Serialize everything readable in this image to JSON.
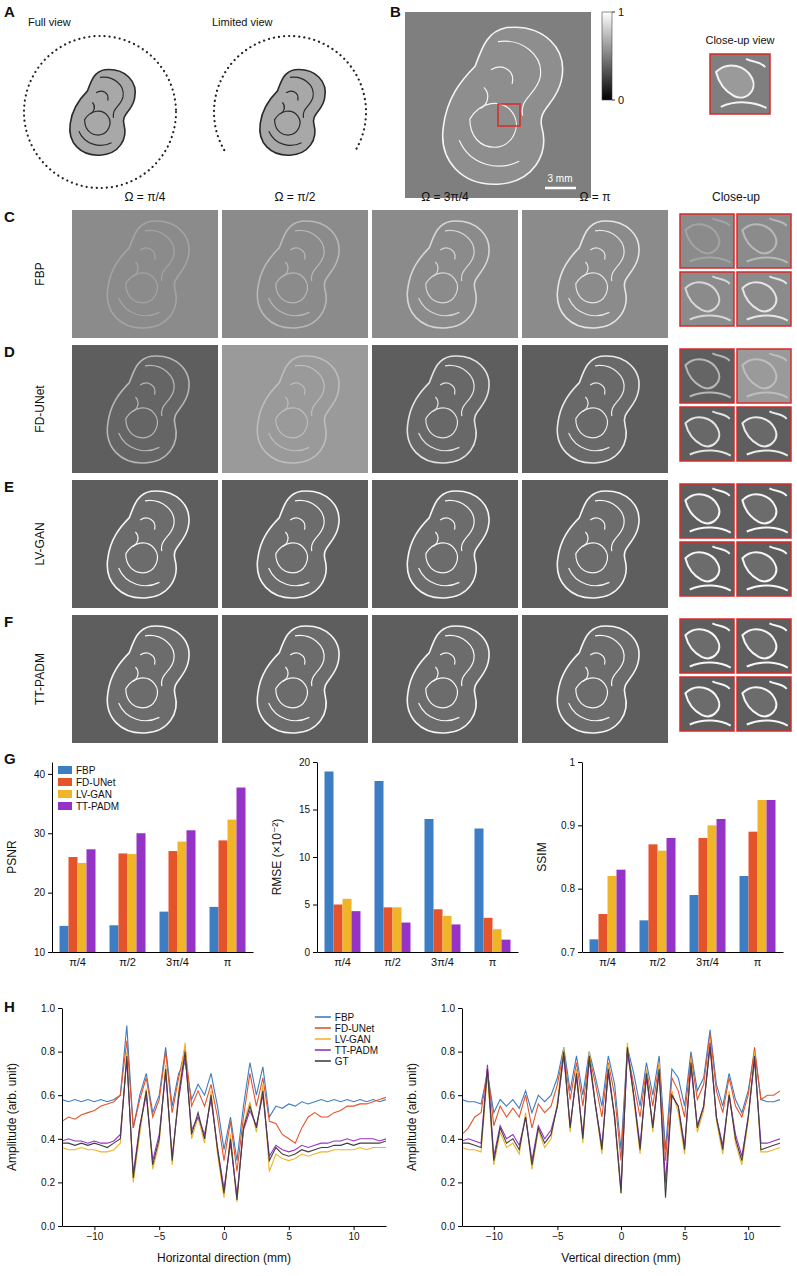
{
  "figure": {
    "panel_letters": [
      "A",
      "B",
      "C",
      "D",
      "E",
      "F",
      "G",
      "H"
    ],
    "panel_a": {
      "full_view": "Full view",
      "limited_view": "Limited view"
    },
    "panel_b": {
      "colorbar": {
        "range": [
          0,
          1
        ],
        "ticks": [
          0,
          1
        ]
      },
      "close_up_title": "Close-up view",
      "scale_bar": "3 mm"
    },
    "columns": [
      "Ω = π/4",
      "Ω = π/2",
      "Ω = 3π/4",
      "Ω = π"
    ],
    "close_up_head": "Close-up",
    "rows": [
      "FBP",
      "FD-UNet",
      "LV-GAN",
      "TT-PADM"
    ]
  },
  "chart_data": [
    {
      "type": "bar",
      "ylabel": "PSNR",
      "categories": [
        "π/4",
        "π/2",
        "3π/4",
        "π"
      ],
      "ylim": [
        10,
        42
      ],
      "yticks": [
        10,
        20,
        30,
        40
      ],
      "legend": "upper left",
      "series": [
        {
          "name": "FBP",
          "color": "#3c7dc4",
          "values": [
            14.4,
            14.5,
            16.8,
            17.6
          ]
        },
        {
          "name": "FD-UNet",
          "color": "#e5532b",
          "values": [
            26,
            26.6,
            27,
            28.8
          ]
        },
        {
          "name": "LV-GAN",
          "color": "#f0b429",
          "values": [
            25,
            26.5,
            28.6,
            32.3
          ]
        },
        {
          "name": "TT-PADM",
          "color": "#9532c8",
          "values": [
            27.3,
            30,
            30.5,
            37.7
          ]
        }
      ]
    },
    {
      "type": "bar",
      "ylabel": "RMSE (×10⁻²)",
      "categories": [
        "π/4",
        "π/2",
        "3π/4",
        "π"
      ],
      "ylim": [
        0,
        20
      ],
      "yticks": [
        0,
        5,
        10,
        15,
        20
      ],
      "series": [
        {
          "color": "#3c7dc4",
          "values": [
            19,
            18,
            14,
            13
          ]
        },
        {
          "color": "#e5532b",
          "values": [
            5,
            4.7,
            4.5,
            3.6
          ]
        },
        {
          "color": "#f0b429",
          "values": [
            5.6,
            4.7,
            3.8,
            2.4
          ]
        },
        {
          "color": "#9532c8",
          "values": [
            4.3,
            3.1,
            2.9,
            1.3
          ]
        }
      ]
    },
    {
      "type": "bar",
      "ylabel": "SSIM",
      "categories": [
        "π/4",
        "π/2",
        "3π/4",
        "π"
      ],
      "ylim": [
        0.7,
        1
      ],
      "yticks": [
        0.7,
        0.8,
        0.9,
        1
      ],
      "series": [
        {
          "color": "#3c7dc4",
          "values": [
            0.72,
            0.75,
            0.79,
            0.82
          ]
        },
        {
          "color": "#e5532b",
          "values": [
            0.76,
            0.87,
            0.88,
            0.89
          ]
        },
        {
          "color": "#f0b429",
          "values": [
            0.82,
            0.86,
            0.9,
            0.94
          ]
        },
        {
          "color": "#9532c8",
          "values": [
            0.83,
            0.88,
            0.91,
            0.94
          ]
        }
      ]
    },
    {
      "type": "line",
      "xlabel": "Horizontal direction (mm)",
      "ylabel": "Amplitude (arb. unit)",
      "x": [
        -12.5,
        -12,
        -11.5,
        -11,
        -10.5,
        -10,
        -9.5,
        -9,
        -8.5,
        -8,
        -7.5,
        -7,
        -6.5,
        -6,
        -5.5,
        -5,
        -4.5,
        -4,
        -3.5,
        -3,
        -2.5,
        -2,
        -1.5,
        -1,
        -0.5,
        0,
        0.5,
        1,
        1.5,
        2,
        2.5,
        3,
        3.5,
        4,
        4.5,
        5,
        5.5,
        6,
        6.5,
        7,
        7.5,
        8,
        8.5,
        9,
        9.5,
        10,
        10.5,
        11,
        11.5,
        12,
        12.5
      ],
      "xlim": [
        -12.5,
        12.5
      ],
      "xticks": [
        {
          "value": -10,
          "label": "−10"
        },
        {
          "value": -5,
          "label": "−5"
        },
        0,
        5,
        10
      ],
      "ylim": [
        0,
        1
      ],
      "yticks": [
        {
          "value": 0,
          "label": "0.0"
        },
        0.2,
        0.4,
        0.6,
        0.8,
        {
          "value": 1,
          "label": "1.0"
        }
      ],
      "legend": "upper right",
      "series": [
        {
          "name": "FBP",
          "color": "#3c7dc4",
          "values": [
            0.58,
            0.57,
            0.58,
            0.57,
            0.58,
            0.57,
            0.58,
            0.57,
            0.58,
            0.6,
            0.92,
            0.45,
            0.6,
            0.7,
            0.52,
            0.6,
            0.82,
            0.55,
            0.7,
            0.75,
            0.58,
            0.65,
            0.6,
            0.7,
            0.55,
            0.35,
            0.5,
            0.3,
            0.55,
            0.75,
            0.6,
            0.73,
            0.5,
            0.55,
            0.54,
            0.56,
            0.55,
            0.57,
            0.56,
            0.57,
            0.58,
            0.57,
            0.58,
            0.57,
            0.58,
            0.57,
            0.58,
            0.57,
            0.58,
            0.57,
            0.58
          ]
        },
        {
          "name": "FD-UNet",
          "color": "#e5532b",
          "values": [
            0.48,
            0.5,
            0.49,
            0.51,
            0.52,
            0.53,
            0.55,
            0.56,
            0.57,
            0.6,
            0.85,
            0.45,
            0.58,
            0.68,
            0.5,
            0.58,
            0.8,
            0.52,
            0.68,
            0.82,
            0.55,
            0.62,
            0.55,
            0.65,
            0.5,
            0.3,
            0.48,
            0.25,
            0.5,
            0.7,
            0.55,
            0.68,
            0.48,
            0.47,
            0.42,
            0.4,
            0.38,
            0.45,
            0.5,
            0.52,
            0.5,
            0.5,
            0.52,
            0.53,
            0.55,
            0.55,
            0.56,
            0.56,
            0.57,
            0.58,
            0.59
          ]
        },
        {
          "name": "LV-GAN",
          "color": "#f0b429",
          "values": [
            0.36,
            0.35,
            0.35,
            0.36,
            0.35,
            0.35,
            0.34,
            0.34,
            0.35,
            0.38,
            0.8,
            0.2,
            0.42,
            0.63,
            0.26,
            0.38,
            0.74,
            0.28,
            0.62,
            0.84,
            0.4,
            0.5,
            0.38,
            0.62,
            0.33,
            0.13,
            0.42,
            0.11,
            0.46,
            0.57,
            0.43,
            0.65,
            0.25,
            0.33,
            0.31,
            0.3,
            0.31,
            0.33,
            0.32,
            0.33,
            0.34,
            0.34,
            0.35,
            0.35,
            0.35,
            0.35,
            0.36,
            0.35,
            0.36,
            0.36,
            0.36
          ]
        },
        {
          "name": "TT-PADM",
          "color": "#9532c8",
          "values": [
            0.39,
            0.4,
            0.39,
            0.39,
            0.38,
            0.39,
            0.38,
            0.38,
            0.39,
            0.42,
            0.76,
            0.24,
            0.46,
            0.6,
            0.3,
            0.42,
            0.7,
            0.32,
            0.58,
            0.78,
            0.44,
            0.5,
            0.42,
            0.58,
            0.36,
            0.17,
            0.38,
            0.14,
            0.44,
            0.53,
            0.46,
            0.6,
            0.32,
            0.37,
            0.35,
            0.34,
            0.35,
            0.37,
            0.36,
            0.37,
            0.38,
            0.38,
            0.39,
            0.39,
            0.4,
            0.39,
            0.4,
            0.4,
            0.4,
            0.39,
            0.4
          ]
        },
        {
          "name": "GT",
          "color": "#404040",
          "values": [
            0.38,
            0.38,
            0.37,
            0.38,
            0.37,
            0.38,
            0.37,
            0.36,
            0.38,
            0.4,
            0.78,
            0.22,
            0.45,
            0.62,
            0.28,
            0.4,
            0.72,
            0.3,
            0.6,
            0.8,
            0.42,
            0.52,
            0.4,
            0.6,
            0.35,
            0.15,
            0.4,
            0.12,
            0.45,
            0.55,
            0.45,
            0.62,
            0.3,
            0.36,
            0.33,
            0.32,
            0.33,
            0.35,
            0.34,
            0.35,
            0.36,
            0.36,
            0.37,
            0.37,
            0.38,
            0.37,
            0.38,
            0.38,
            0.38,
            0.38,
            0.39
          ]
        }
      ]
    },
    {
      "type": "line",
      "xlabel": "Vertical direction (mm)",
      "ylabel": "Amplitude (arb. unit)",
      "x": [
        -12.5,
        -12,
        -11.5,
        -11,
        -10.5,
        -10,
        -9.5,
        -9,
        -8.5,
        -8,
        -7.5,
        -7,
        -6.5,
        -6,
        -5.5,
        -5,
        -4.5,
        -4,
        -3.5,
        -3,
        -2.5,
        -2,
        -1.5,
        -1,
        -0.5,
        0,
        0.5,
        1,
        1.5,
        2,
        2.5,
        3,
        3.5,
        4,
        4.5,
        5,
        5.5,
        6,
        6.5,
        7,
        7.5,
        8,
        8.5,
        9,
        9.5,
        10,
        10.5,
        11,
        11.5,
        12,
        12.5
      ],
      "xlim": [
        -12.5,
        12.5
      ],
      "xticks": [
        {
          "value": -10,
          "label": "−10"
        },
        {
          "value": -5,
          "label": "−5"
        },
        0,
        5,
        10
      ],
      "ylim": [
        0,
        1
      ],
      "yticks": [
        {
          "value": 0,
          "label": "0.0"
        },
        0.2,
        0.4,
        0.6,
        0.8,
        {
          "value": 1,
          "label": "1.0"
        }
      ],
      "series": [
        {
          "color": "#3c7dc4",
          "values": [
            0.58,
            0.57,
            0.57,
            0.56,
            0.7,
            0.52,
            0.58,
            0.55,
            0.58,
            0.54,
            0.62,
            0.52,
            0.6,
            0.57,
            0.6,
            0.68,
            0.82,
            0.62,
            0.78,
            0.6,
            0.8,
            0.68,
            0.55,
            0.78,
            0.65,
            0.35,
            0.82,
            0.7,
            0.55,
            0.75,
            0.6,
            0.78,
            0.35,
            0.72,
            0.68,
            0.55,
            0.8,
            0.62,
            0.68,
            0.9,
            0.65,
            0.55,
            0.7,
            0.58,
            0.52,
            0.62,
            0.8,
            0.58,
            0.57,
            0.57,
            0.58
          ]
        },
        {
          "color": "#e5532b",
          "values": [
            0.42,
            0.45,
            0.5,
            0.52,
            0.72,
            0.46,
            0.55,
            0.5,
            0.54,
            0.5,
            0.6,
            0.45,
            0.56,
            0.52,
            0.55,
            0.65,
            0.8,
            0.58,
            0.75,
            0.55,
            0.78,
            0.65,
            0.5,
            0.75,
            0.6,
            0.3,
            0.8,
            0.65,
            0.5,
            0.72,
            0.55,
            0.75,
            0.3,
            0.68,
            0.62,
            0.5,
            0.78,
            0.58,
            0.65,
            0.88,
            0.62,
            0.52,
            0.68,
            0.55,
            0.5,
            0.6,
            0.82,
            0.58,
            0.6,
            0.6,
            0.62
          ]
        },
        {
          "color": "#f0b429",
          "values": [
            0.36,
            0.35,
            0.35,
            0.34,
            0.7,
            0.28,
            0.43,
            0.36,
            0.38,
            0.33,
            0.52,
            0.26,
            0.44,
            0.36,
            0.4,
            0.57,
            0.82,
            0.43,
            0.72,
            0.38,
            0.8,
            0.55,
            0.33,
            0.74,
            0.48,
            0.15,
            0.84,
            0.58,
            0.33,
            0.72,
            0.43,
            0.75,
            0.18,
            0.62,
            0.52,
            0.33,
            0.77,
            0.43,
            0.53,
            0.86,
            0.48,
            0.33,
            0.62,
            0.38,
            0.28,
            0.48,
            0.8,
            0.34,
            0.34,
            0.35,
            0.36
          ]
        },
        {
          "color": "#9532c8",
          "values": [
            0.39,
            0.4,
            0.39,
            0.38,
            0.74,
            0.32,
            0.46,
            0.4,
            0.42,
            0.37,
            0.5,
            0.3,
            0.46,
            0.4,
            0.44,
            0.55,
            0.78,
            0.46,
            0.68,
            0.42,
            0.76,
            0.55,
            0.37,
            0.7,
            0.5,
            0.17,
            0.8,
            0.6,
            0.37,
            0.68,
            0.46,
            0.7,
            0.2,
            0.6,
            0.55,
            0.37,
            0.73,
            0.46,
            0.55,
            0.84,
            0.5,
            0.37,
            0.6,
            0.42,
            0.32,
            0.5,
            0.76,
            0.38,
            0.38,
            0.39,
            0.4
          ]
        },
        {
          "color": "#404040",
          "values": [
            0.38,
            0.38,
            0.37,
            0.36,
            0.72,
            0.3,
            0.45,
            0.38,
            0.4,
            0.35,
            0.5,
            0.28,
            0.45,
            0.38,
            0.42,
            0.55,
            0.8,
            0.45,
            0.7,
            0.4,
            0.78,
            0.55,
            0.35,
            0.72,
            0.5,
            0.15,
            0.82,
            0.6,
            0.35,
            0.7,
            0.45,
            0.72,
            0.13,
            0.6,
            0.55,
            0.35,
            0.75,
            0.45,
            0.55,
            0.82,
            0.5,
            0.35,
            0.6,
            0.4,
            0.3,
            0.5,
            0.78,
            0.35,
            0.36,
            0.37,
            0.38
          ]
        }
      ]
    }
  ]
}
